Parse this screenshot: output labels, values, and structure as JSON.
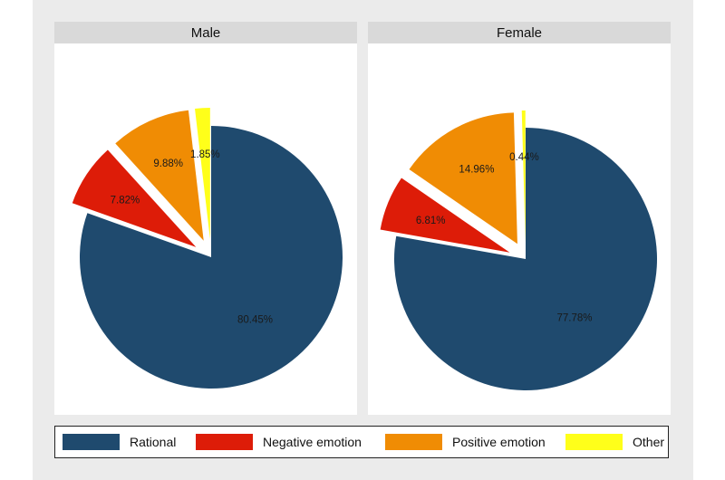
{
  "colors": {
    "rational": "#1f4a6e",
    "negative": "#dd1c08",
    "positive": "#f08c04",
    "other": "#ffff1a"
  },
  "legend": {
    "rational": "Rational",
    "negative": "Negative emotion",
    "positive": "Positive emotion",
    "other": "Other"
  },
  "chart_data": [
    {
      "type": "pie",
      "title": "Male",
      "categories": [
        "Rational",
        "Negative emotion",
        "Positive emotion",
        "Other"
      ],
      "values": [
        80.45,
        7.82,
        9.88,
        1.85
      ],
      "labels": [
        "80.45%",
        "7.82%",
        "9.88%",
        "1.85%"
      ],
      "exploded": [
        false,
        true,
        true,
        true
      ]
    },
    {
      "type": "pie",
      "title": "Female",
      "categories": [
        "Rational",
        "Negative emotion",
        "Positive emotion",
        "Other"
      ],
      "values": [
        77.78,
        6.81,
        14.96,
        0.44
      ],
      "labels": [
        "77.78%",
        "6.81%",
        "14.96%",
        "0.44%"
      ],
      "exploded": [
        false,
        true,
        true,
        true
      ]
    }
  ]
}
